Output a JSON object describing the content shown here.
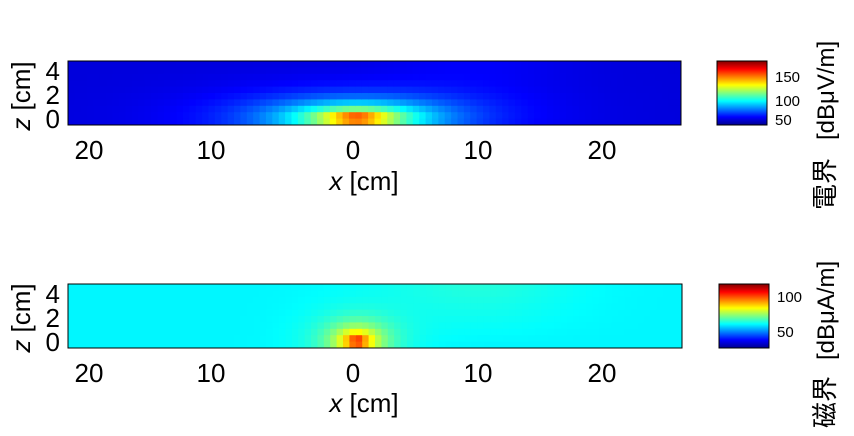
{
  "chart_data": [
    {
      "type": "heatmap",
      "xlabel": "x [cm]",
      "ylabel": "z [cm]",
      "x_tick_labels": [
        "20",
        "10",
        "0",
        "10",
        "20"
      ],
      "y_tick_labels": [
        "4",
        "2",
        "0"
      ],
      "xlim": [
        -24,
        27
      ],
      "ylim": [
        -0.2,
        4.6
      ],
      "colorbar": {
        "label": "電界",
        "unit": "[dBμV/m]",
        "ticks": [
          150,
          100,
          50
        ],
        "range": [
          40,
          175
        ]
      },
      "field": {
        "background": 52,
        "peak": 172,
        "peak_x": 0,
        "peak_z": 0.3,
        "spread_x_cm": 7.5
      },
      "colormap": [
        "#00008f",
        "#0000ff",
        "#00ffff",
        "#ffff00",
        "#ff0000",
        "#800000"
      ]
    },
    {
      "type": "heatmap",
      "xlabel": "x [cm]",
      "ylabel": "z [cm]",
      "x_tick_labels": [
        "20",
        "10",
        "0",
        "10",
        "20"
      ],
      "y_tick_labels": [
        "4",
        "2",
        "0"
      ],
      "xlim": [
        -24,
        27
      ],
      "ylim": [
        -0.2,
        4.6
      ],
      "colorbar": {
        "label": "磁界",
        "unit": "[dBμA/m]",
        "ticks": [
          100,
          50
        ],
        "range": [
          25,
          115
        ]
      },
      "field": {
        "background": 58,
        "peak": 110,
        "peak_x": 0,
        "peak_z": 0.3,
        "spread_x_cm": 2.5
      },
      "colormap": [
        "#00008f",
        "#0000ff",
        "#00ffff",
        "#ffff00",
        "#ff0000",
        "#800000"
      ]
    }
  ]
}
